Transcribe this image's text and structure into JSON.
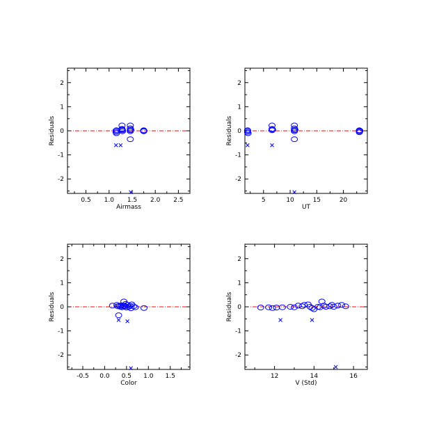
{
  "colors": {
    "marker": "#0000ff",
    "zero_line": "#ff0000",
    "axis": "#000000",
    "background": "#ffffff"
  },
  "chart_data": [
    {
      "type": "scatter",
      "xlabel": "Airmass",
      "ylabel": "Residuals",
      "xlim": [
        0.1,
        2.75
      ],
      "ylim": [
        -2.6,
        2.6
      ],
      "xticks": [
        0.5,
        1.0,
        1.5,
        2.0,
        2.5
      ],
      "xtick_labels": [
        "0.5",
        "1.0",
        "1.5",
        "2.0",
        "2.5"
      ],
      "yticks": [
        -2,
        -1,
        0,
        1,
        2
      ],
      "ytick_labels": [
        "-2",
        "-1",
        "0",
        "1",
        "2"
      ],
      "zero_line": 0,
      "series": [
        {
          "marker": "circle",
          "x": [
            1.15,
            1.15,
            1.16,
            1.16,
            1.28,
            1.28,
            1.29,
            1.28,
            1.29,
            1.46,
            1.46,
            1.46,
            1.47,
            1.46,
            1.46,
            1.75,
            1.75,
            1.75
          ],
          "y": [
            0.0,
            -0.05,
            -0.1,
            0.02,
            0.22,
            0.08,
            0.02,
            0.05,
            -0.02,
            0.22,
            0.1,
            0.02,
            0.05,
            -0.02,
            -0.35,
            0.02,
            -0.02,
            0.0
          ]
        },
        {
          "marker": "x",
          "x": [
            1.15,
            1.25,
            1.47
          ],
          "y": [
            -0.6,
            -0.6,
            -2.55
          ]
        }
      ]
    },
    {
      "type": "scatter",
      "xlabel": "UT",
      "ylabel": "Residuals",
      "xlim": [
        1.5,
        24.5
      ],
      "ylim": [
        -2.6,
        2.6
      ],
      "xticks": [
        5,
        10,
        15,
        20
      ],
      "xtick_labels": [
        "5",
        "10",
        "15",
        "20"
      ],
      "yticks": [
        -2,
        -1,
        0,
        1,
        2
      ],
      "ytick_labels": [
        "-2",
        "-1",
        "0",
        "1",
        "2"
      ],
      "zero_line": 0,
      "series": [
        {
          "marker": "circle",
          "x": [
            2.0,
            2.0,
            2.1,
            2.0,
            6.6,
            6.6,
            6.6,
            6.7,
            10.8,
            10.8,
            10.8,
            10.9,
            10.8,
            10.8,
            23.0,
            23.0,
            23.1,
            23.0
          ],
          "y": [
            0.0,
            -0.05,
            -0.1,
            0.02,
            0.22,
            0.08,
            0.02,
            0.05,
            0.22,
            0.1,
            0.02,
            0.05,
            -0.02,
            -0.35,
            0.02,
            -0.02,
            0.0,
            -0.06
          ]
        },
        {
          "marker": "x",
          "x": [
            2.0,
            6.6,
            10.8
          ],
          "y": [
            -0.6,
            -0.6,
            -2.55
          ]
        }
      ]
    },
    {
      "type": "scatter",
      "xlabel": "Color",
      "ylabel": "Residuals",
      "xlim": [
        -0.85,
        1.95
      ],
      "ylim": [
        -2.6,
        2.6
      ],
      "xticks": [
        -0.5,
        0.0,
        0.5,
        1.0,
        1.5
      ],
      "xtick_labels": [
        "-0.5",
        "0.0",
        "0.5",
        "1.0",
        "1.5"
      ],
      "yticks": [
        -2,
        -1,
        0,
        1,
        2
      ],
      "ytick_labels": [
        "-2",
        "-1",
        "0",
        "1",
        "2"
      ],
      "zero_line": 0,
      "series": [
        {
          "marker": "circle",
          "x": [
            0.18,
            0.28,
            0.3,
            0.34,
            0.36,
            0.38,
            0.4,
            0.42,
            0.44,
            0.45,
            0.46,
            0.48,
            0.5,
            0.52,
            0.55,
            0.58,
            0.6,
            0.62,
            0.66,
            0.7,
            0.9,
            0.32
          ],
          "y": [
            0.05,
            0.08,
            0.02,
            0.04,
            0.0,
            0.06,
            -0.02,
            0.03,
            0.22,
            0.05,
            0.01,
            0.12,
            -0.03,
            0.08,
            0.0,
            0.04,
            -0.06,
            0.1,
            0.02,
            -0.02,
            -0.05,
            -0.35
          ]
        },
        {
          "marker": "x",
          "x": [
            0.32,
            0.52,
            0.6
          ],
          "y": [
            -0.55,
            -0.6,
            -2.55
          ]
        }
      ]
    },
    {
      "type": "scatter",
      "xlabel": "V (Std)",
      "ylabel": "Residuals",
      "xlim": [
        10.5,
        16.7
      ],
      "ylim": [
        -2.6,
        2.6
      ],
      "xticks": [
        12,
        14,
        16
      ],
      "xtick_labels": [
        "12",
        "14",
        "16"
      ],
      "yticks": [
        -2,
        -1,
        0,
        1,
        2
      ],
      "ytick_labels": [
        "-2",
        "-1",
        "0",
        "1",
        "2"
      ],
      "zero_line": 0,
      "series": [
        {
          "marker": "circle",
          "x": [
            11.3,
            11.7,
            11.9,
            12.1,
            12.4,
            12.8,
            13.0,
            13.2,
            13.4,
            13.5,
            13.7,
            13.8,
            13.9,
            14.0,
            14.2,
            14.3,
            14.4,
            14.5,
            14.6,
            14.8,
            14.9,
            15.0,
            15.2,
            15.4,
            15.6
          ],
          "y": [
            -0.03,
            -0.02,
            -0.05,
            -0.03,
            -0.02,
            0.0,
            -0.02,
            0.05,
            0.02,
            0.08,
            0.1,
            0.0,
            -0.05,
            -0.1,
            0.0,
            -0.02,
            0.22,
            0.05,
            0.0,
            0.02,
            0.08,
            0.0,
            0.05,
            0.08,
            0.02
          ]
        },
        {
          "marker": "x",
          "x": [
            12.3,
            13.9,
            15.1
          ],
          "y": [
            -0.55,
            -0.55,
            -2.5
          ]
        }
      ]
    }
  ]
}
